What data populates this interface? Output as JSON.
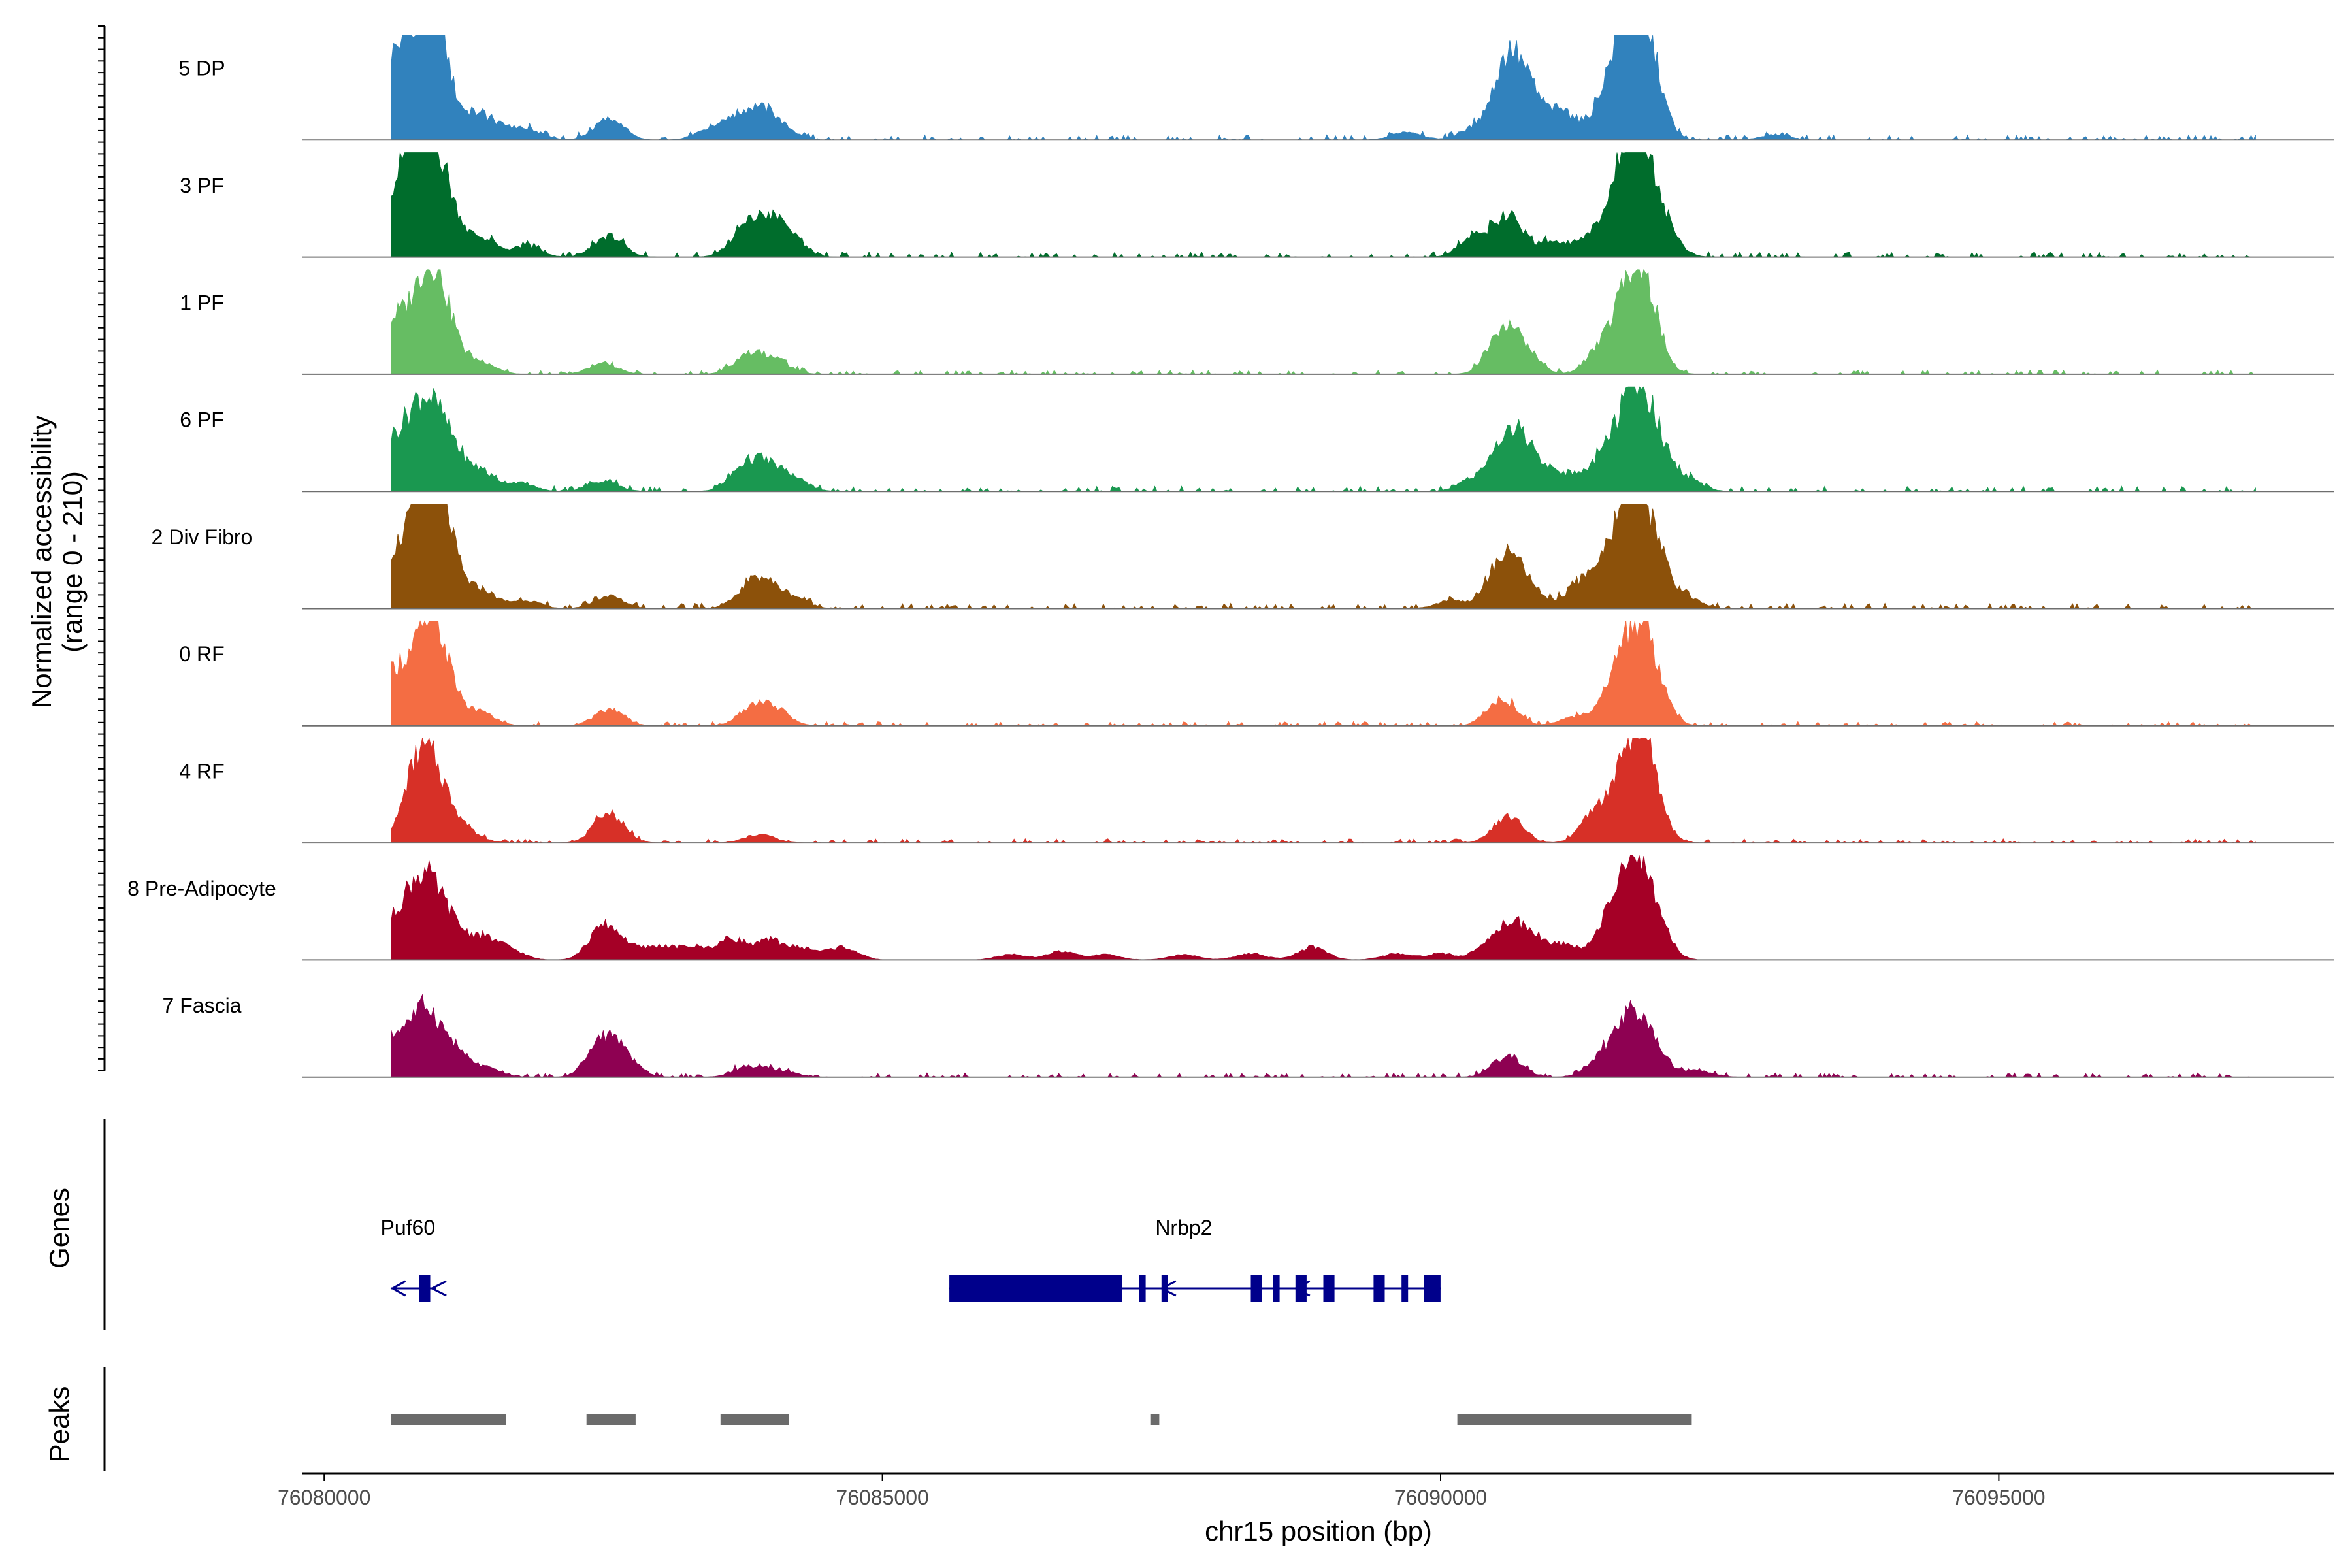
{
  "chart_data": {
    "type": "area",
    "title": "",
    "ylabel_line1": "Normalized accessibility",
    "ylabel_line2": "(range 0 - 210)",
    "yrange": [
      0,
      210
    ],
    "xlabel": "chr15 position (bp)",
    "xlim": [
      76079800,
      76098000
    ],
    "x_ticks": [
      {
        "value": 76080000,
        "label": "76080000"
      },
      {
        "value": 76085000,
        "label": "76085000"
      },
      {
        "value": 76090000,
        "label": "76090000"
      },
      {
        "value": 76095000,
        "label": "76095000"
      }
    ],
    "peak_kernel_bp": 130,
    "series": [
      {
        "name": "5 DP",
        "color": "#3182BD",
        "baseline": 0.05,
        "start": 76080600,
        "end": 76097300,
        "peaks": [
          [
            76080620,
            0.75
          ],
          [
            76080900,
            0.92
          ],
          [
            76081000,
            0.7
          ],
          [
            76081350,
            0.22
          ],
          [
            76081600,
            0.1
          ],
          [
            76081850,
            0.08
          ],
          [
            76082550,
            0.2
          ],
          [
            76083450,
            0.1
          ],
          [
            76083700,
            0.16
          ],
          [
            76083900,
            0.24
          ],
          [
            76084100,
            0.1
          ],
          [
            76089700,
            0.08
          ],
          [
            76090300,
            0.1
          ],
          [
            76090600,
            0.72
          ],
          [
            76090800,
            0.35
          ],
          [
            76091100,
            0.25
          ],
          [
            76091500,
            0.4
          ],
          [
            76091700,
            0.9
          ],
          [
            76091850,
            0.7
          ],
          [
            76093000,
            0.05
          ]
        ]
      },
      {
        "name": "3 PF",
        "color": "#006D2C",
        "baseline": 0.05,
        "start": 76080600,
        "end": 76097300,
        "peaks": [
          [
            76080620,
            0.5
          ],
          [
            76080850,
            0.95
          ],
          [
            76081050,
            0.68
          ],
          [
            76081400,
            0.18
          ],
          [
            76081800,
            0.1
          ],
          [
            76082550,
            0.2
          ],
          [
            76083750,
            0.2
          ],
          [
            76083950,
            0.28
          ],
          [
            76084150,
            0.2
          ],
          [
            76090300,
            0.18
          ],
          [
            76090600,
            0.38
          ],
          [
            76091000,
            0.15
          ],
          [
            76091350,
            0.2
          ],
          [
            76091650,
            0.75
          ],
          [
            76091800,
            0.8
          ],
          [
            76092000,
            0.25
          ]
        ]
      },
      {
        "name": "1 PF",
        "color": "#66BD63",
        "baseline": 0.04,
        "start": 76080600,
        "end": 76097300,
        "peaks": [
          [
            76080620,
            0.48
          ],
          [
            76080900,
            0.7
          ],
          [
            76081050,
            0.55
          ],
          [
            76081400,
            0.12
          ],
          [
            76082500,
            0.1
          ],
          [
            76083800,
            0.18
          ],
          [
            76084050,
            0.12
          ],
          [
            76090550,
            0.4
          ],
          [
            76090750,
            0.2
          ],
          [
            76091450,
            0.25
          ],
          [
            76091700,
            0.7
          ],
          [
            76091850,
            0.55
          ]
        ]
      },
      {
        "name": "6 PF",
        "color": "#1A9850",
        "baseline": 0.05,
        "start": 76080600,
        "end": 76097300,
        "peaks": [
          [
            76080620,
            0.45
          ],
          [
            76080880,
            0.75
          ],
          [
            76081100,
            0.45
          ],
          [
            76081400,
            0.18
          ],
          [
            76081750,
            0.08
          ],
          [
            76082500,
            0.1
          ],
          [
            76083750,
            0.2
          ],
          [
            76083950,
            0.22
          ],
          [
            76084200,
            0.12
          ],
          [
            76090300,
            0.12
          ],
          [
            76090600,
            0.5
          ],
          [
            76090800,
            0.3
          ],
          [
            76091100,
            0.15
          ],
          [
            76091450,
            0.3
          ],
          [
            76091700,
            0.75
          ],
          [
            76091900,
            0.55
          ],
          [
            76092200,
            0.12
          ]
        ]
      },
      {
        "name": "2 Div Fibro",
        "color": "#8C510A",
        "baseline": 0.05,
        "start": 76080600,
        "end": 76097300,
        "peaks": [
          [
            76080620,
            0.48
          ],
          [
            76080900,
            0.95
          ],
          [
            76081050,
            0.72
          ],
          [
            76081400,
            0.18
          ],
          [
            76081800,
            0.08
          ],
          [
            76082550,
            0.12
          ],
          [
            76083800,
            0.15
          ],
          [
            76083950,
            0.2
          ],
          [
            76084200,
            0.1
          ],
          [
            76090100,
            0.08
          ],
          [
            76090550,
            0.45
          ],
          [
            76090750,
            0.25
          ],
          [
            76091200,
            0.15
          ],
          [
            76091450,
            0.38
          ],
          [
            76091700,
            0.95
          ],
          [
            76091900,
            0.55
          ],
          [
            76092200,
            0.1
          ]
        ]
      },
      {
        "name": "0 RF",
        "color": "#F46D43",
        "baseline": 0.04,
        "start": 76080600,
        "end": 76097300,
        "peaks": [
          [
            76080620,
            0.48
          ],
          [
            76080900,
            0.68
          ],
          [
            76081050,
            0.5
          ],
          [
            76081400,
            0.12
          ],
          [
            76082550,
            0.15
          ],
          [
            76083850,
            0.18
          ],
          [
            76084050,
            0.12
          ],
          [
            76090550,
            0.25
          ],
          [
            76091200,
            0.08
          ],
          [
            76091550,
            0.35
          ],
          [
            76091750,
            0.68
          ],
          [
            76091900,
            0.4
          ]
        ]
      },
      {
        "name": "4 RF",
        "color": "#D73027",
        "baseline": 0.04,
        "start": 76080600,
        "end": 76097300,
        "peaks": [
          [
            76080850,
            0.75
          ],
          [
            76081050,
            0.4
          ],
          [
            76081300,
            0.08
          ],
          [
            76082550,
            0.28
          ],
          [
            76083900,
            0.08
          ],
          [
            76090600,
            0.25
          ],
          [
            76091400,
            0.3
          ],
          [
            76091700,
            0.72
          ],
          [
            76091850,
            0.6
          ]
        ]
      },
      {
        "name": "8 Pre-Adipocyte",
        "color": "#A50026",
        "baseline": 0.0,
        "start": 76080600,
        "end": 76092300,
        "peaks": [
          [
            76080650,
            0.35
          ],
          [
            76080880,
            0.68
          ],
          [
            76081100,
            0.35
          ],
          [
            76081400,
            0.2
          ],
          [
            76081650,
            0.1
          ],
          [
            76082500,
            0.3
          ],
          [
            76082700,
            0.1
          ],
          [
            76083000,
            0.12
          ],
          [
            76083300,
            0.12
          ],
          [
            76083650,
            0.2
          ],
          [
            76084000,
            0.18
          ],
          [
            76084300,
            0.1
          ],
          [
            76084650,
            0.12
          ],
          [
            76086150,
            0.05
          ],
          [
            76086600,
            0.08
          ],
          [
            76087000,
            0.05
          ],
          [
            76087700,
            0.05
          ],
          [
            76088300,
            0.06
          ],
          [
            76088850,
            0.12
          ],
          [
            76089600,
            0.06
          ],
          [
            76090000,
            0.06
          ],
          [
            76090450,
            0.15
          ],
          [
            76090650,
            0.28
          ],
          [
            76090850,
            0.15
          ],
          [
            76091100,
            0.12
          ],
          [
            76091450,
            0.2
          ],
          [
            76091680,
            0.85
          ],
          [
            76091900,
            0.45
          ]
        ]
      },
      {
        "name": "7 Fascia",
        "color": "#8E0152",
        "baseline": 0.04,
        "start": 76080600,
        "end": 76097300,
        "peaks": [
          [
            76080620,
            0.35
          ],
          [
            76080900,
            0.6
          ],
          [
            76081150,
            0.25
          ],
          [
            76081450,
            0.08
          ],
          [
            76082500,
            0.35
          ],
          [
            76082700,
            0.15
          ],
          [
            76083800,
            0.1
          ],
          [
            76084100,
            0.06
          ],
          [
            76090600,
            0.2
          ],
          [
            76091450,
            0.18
          ],
          [
            76091700,
            0.5
          ],
          [
            76091900,
            0.25
          ],
          [
            76092300,
            0.06
          ]
        ]
      }
    ],
    "genes_label": "Genes",
    "genes": [
      {
        "name": "Puf60",
        "label_pos": 76080750,
        "start": 76080600,
        "end": 76081000,
        "strand": "-",
        "exons": [
          [
            76080850,
            76080950
          ]
        ]
      },
      {
        "name": "Nrbp2",
        "label_pos": 76087700,
        "start": 76085600,
        "end": 76090000,
        "strand": "-",
        "exons": [
          [
            76085600,
            76087150
          ],
          [
            76087300,
            76087350
          ],
          [
            76087500,
            76087550
          ],
          [
            76088300,
            76088400
          ],
          [
            76088500,
            76088550
          ],
          [
            76088700,
            76088800
          ],
          [
            76088950,
            76089050
          ],
          [
            76089400,
            76089500
          ],
          [
            76089650,
            76089700
          ],
          [
            76089850,
            76090000
          ]
        ]
      }
    ],
    "peaks_label": "Peaks",
    "peaks": [
      [
        76080600,
        76081630
      ],
      [
        76082350,
        76082790
      ],
      [
        76083550,
        76084160
      ],
      [
        76087400,
        76087480
      ],
      [
        76090150,
        76092250
      ]
    ]
  }
}
